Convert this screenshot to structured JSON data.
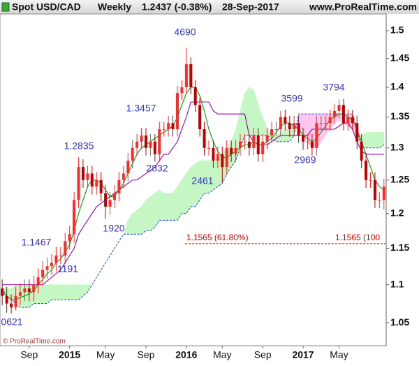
{
  "chart_data": {
    "type": "candlestick",
    "header": {
      "symbol": "Spot USD/CAD",
      "period": "Weekly",
      "last": "1.2437 (-0.38%)",
      "date": "28-Sep-2017",
      "site": "www.ProRealTime.com"
    },
    "copyright": "© ProRealTime.com",
    "categories": [
      null,
      null,
      null,
      null,
      null,
      null,
      "Sep",
      null,
      null,
      null,
      null,
      null,
      null,
      null,
      null,
      "2015",
      null,
      null,
      null,
      null,
      null,
      null,
      null,
      "May",
      null,
      null,
      null,
      null,
      null,
      null,
      null,
      null,
      "Sep",
      null,
      null,
      null,
      null,
      null,
      null,
      null,
      null,
      "2016",
      null,
      null,
      null,
      null,
      null,
      null,
      null,
      "May",
      null,
      null,
      null,
      null,
      null,
      null,
      null,
      null,
      "Sep",
      null,
      null,
      null,
      null,
      null,
      null,
      null,
      null,
      "2017",
      null,
      null,
      null,
      null,
      null,
      null,
      null,
      "May",
      null,
      null,
      null,
      null,
      null,
      null,
      null,
      null,
      null,
      null
    ],
    "open": [
      1.095,
      1.085,
      1.075,
      1.07,
      1.085,
      1.09,
      1.095,
      1.09,
      1.1,
      1.11,
      1.12,
      1.125,
      1.13,
      1.14,
      1.14,
      1.16,
      1.17,
      1.22,
      1.27,
      1.25,
      1.26,
      1.24,
      1.25,
      1.23,
      1.21,
      1.22,
      1.23,
      1.25,
      1.26,
      1.28,
      1.3,
      1.31,
      1.32,
      1.3,
      1.31,
      1.29,
      1.33,
      1.33,
      1.34,
      1.33,
      1.39,
      1.4,
      1.44,
      1.4,
      1.37,
      1.33,
      1.3,
      1.3,
      1.28,
      1.29,
      1.27,
      1.3,
      1.29,
      1.3,
      1.31,
      1.31,
      1.3,
      1.32,
      1.29,
      1.31,
      1.32,
      1.33,
      1.33,
      1.35,
      1.34,
      1.33,
      1.34,
      1.32,
      1.31,
      1.31,
      1.3,
      1.34,
      1.34,
      1.34,
      1.35,
      1.36,
      1.37,
      1.34,
      1.35,
      1.34,
      1.31,
      1.28,
      1.25,
      1.25,
      1.22,
      1.22
    ],
    "high": [
      1.107,
      1.097,
      1.087,
      1.097,
      1.102,
      1.107,
      1.107,
      1.112,
      1.122,
      1.132,
      1.137,
      1.142,
      1.152,
      1.152,
      1.172,
      1.182,
      1.232,
      1.285,
      1.282,
      1.272,
      1.272,
      1.262,
      1.262,
      1.242,
      1.232,
      1.242,
      1.262,
      1.272,
      1.292,
      1.312,
      1.322,
      1.332,
      1.332,
      1.322,
      1.322,
      1.342,
      1.342,
      1.352,
      1.352,
      1.402,
      1.412,
      1.469,
      1.452,
      1.412,
      1.382,
      1.342,
      1.312,
      1.312,
      1.302,
      1.302,
      1.312,
      1.312,
      1.312,
      1.322,
      1.322,
      1.322,
      1.332,
      1.332,
      1.322,
      1.332,
      1.342,
      1.342,
      1.36,
      1.362,
      1.352,
      1.352,
      1.352,
      1.332,
      1.322,
      1.322,
      1.352,
      1.352,
      1.352,
      1.362,
      1.372,
      1.379,
      1.38,
      1.362,
      1.362,
      1.352,
      1.322,
      1.292,
      1.262,
      1.262,
      1.232,
      1.252
    ],
    "low": [
      1.073,
      1.063,
      1.062,
      1.066,
      1.073,
      1.078,
      1.078,
      1.078,
      1.088,
      1.098,
      1.108,
      1.113,
      1.118,
      1.128,
      1.128,
      1.148,
      1.158,
      1.208,
      1.238,
      1.238,
      1.228,
      1.228,
      1.218,
      1.192,
      1.198,
      1.208,
      1.218,
      1.238,
      1.248,
      1.268,
      1.288,
      1.298,
      1.288,
      1.288,
      1.278,
      1.278,
      1.318,
      1.318,
      1.318,
      1.318,
      1.378,
      1.388,
      1.388,
      1.358,
      1.318,
      1.288,
      1.288,
      1.268,
      1.268,
      1.246,
      1.258,
      1.278,
      1.278,
      1.288,
      1.298,
      1.288,
      1.288,
      1.278,
      1.278,
      1.298,
      1.308,
      1.318,
      1.318,
      1.328,
      1.318,
      1.318,
      1.308,
      1.297,
      1.298,
      1.288,
      1.288,
      1.328,
      1.328,
      1.328,
      1.338,
      1.348,
      1.328,
      1.328,
      1.328,
      1.298,
      1.268,
      1.238,
      1.238,
      1.208,
      1.208,
      1.206
    ],
    "close": [
      1.085,
      1.075,
      1.07,
      1.085,
      1.09,
      1.095,
      1.09,
      1.1,
      1.11,
      1.12,
      1.125,
      1.13,
      1.14,
      1.14,
      1.16,
      1.17,
      1.22,
      1.27,
      1.25,
      1.26,
      1.24,
      1.25,
      1.23,
      1.21,
      1.22,
      1.23,
      1.25,
      1.26,
      1.28,
      1.3,
      1.31,
      1.32,
      1.3,
      1.31,
      1.29,
      1.33,
      1.33,
      1.34,
      1.33,
      1.39,
      1.4,
      1.44,
      1.4,
      1.37,
      1.33,
      1.3,
      1.3,
      1.28,
      1.29,
      1.27,
      1.3,
      1.29,
      1.3,
      1.31,
      1.31,
      1.3,
      1.32,
      1.29,
      1.31,
      1.32,
      1.33,
      1.33,
      1.35,
      1.34,
      1.33,
      1.34,
      1.32,
      1.31,
      1.31,
      1.3,
      1.34,
      1.34,
      1.34,
      1.35,
      1.36,
      1.37,
      1.34,
      1.35,
      1.34,
      1.31,
      1.28,
      1.25,
      1.25,
      1.22,
      1.22,
      1.24
    ],
    "up_color": "#ff2a2a",
    "down_color": "#c00000",
    "conversion_line": {
      "color": "#00a000",
      "values": [
        1.09,
        1.085,
        1.08,
        1.08,
        1.083,
        1.085,
        1.088,
        1.092,
        1.1,
        1.107,
        1.115,
        1.12,
        1.13,
        1.135,
        1.145,
        1.155,
        1.175,
        1.2,
        1.22,
        1.24,
        1.25,
        1.25,
        1.245,
        1.235,
        1.225,
        1.225,
        1.235,
        1.245,
        1.26,
        1.275,
        1.29,
        1.3,
        1.305,
        1.31,
        1.315,
        1.32,
        1.325,
        1.33,
        1.335,
        1.35,
        1.37,
        1.39,
        1.4,
        1.4,
        1.385,
        1.36,
        1.33,
        1.31,
        1.295,
        1.285,
        1.285,
        1.29,
        1.295,
        1.3,
        1.305,
        1.305,
        1.31,
        1.305,
        1.305,
        1.31,
        1.315,
        1.325,
        1.335,
        1.34,
        1.34,
        1.335,
        1.33,
        1.32,
        1.315,
        1.31,
        1.315,
        1.325,
        1.335,
        1.345,
        1.35,
        1.355,
        1.355,
        1.35,
        1.345,
        1.33,
        1.31,
        1.29,
        1.27,
        1.25,
        1.24,
        1.235
      ]
    },
    "base_line": {
      "color": "#9900aa",
      "values": [
        1.1,
        1.1,
        1.1,
        1.1,
        1.1,
        1.1,
        1.1,
        1.1,
        1.1,
        1.1,
        1.105,
        1.11,
        1.115,
        1.12,
        1.13,
        1.14,
        1.15,
        1.17,
        1.18,
        1.19,
        1.2,
        1.21,
        1.215,
        1.22,
        1.225,
        1.23,
        1.235,
        1.24,
        1.245,
        1.25,
        1.25,
        1.255,
        1.26,
        1.265,
        1.27,
        1.28,
        1.29,
        1.29,
        1.3,
        1.31,
        1.33,
        1.35,
        1.375,
        1.375,
        1.375,
        1.375,
        1.375,
        1.36,
        1.355,
        1.355,
        1.355,
        1.355,
        1.355,
        1.355,
        1.355,
        1.32,
        1.31,
        1.305,
        1.305,
        1.305,
        1.31,
        1.315,
        1.32,
        1.32,
        1.32,
        1.32,
        1.32,
        1.32,
        1.32,
        1.33,
        1.33,
        1.33,
        1.33,
        1.33,
        1.33,
        1.335,
        1.34,
        1.34,
        1.33,
        1.31,
        1.295,
        1.29,
        1.29,
        1.29,
        1.29,
        1.29
      ]
    },
    "cloud": {
      "span_a": [
        1.095,
        1.095,
        1.095,
        1.1,
        1.1,
        1.1,
        1.1,
        1.1,
        1.1,
        1.1,
        1.1,
        1.1,
        1.1,
        1.1,
        1.1,
        1.1,
        1.1,
        1.1,
        1.1,
        1.1,
        1.1,
        1.11,
        1.12,
        1.13,
        1.14,
        1.15,
        1.16,
        1.17,
        1.19,
        1.2,
        1.205,
        1.21,
        1.22,
        1.225,
        1.23,
        1.235,
        1.23,
        1.23,
        1.23,
        1.24,
        1.25,
        1.26,
        1.27,
        1.275,
        1.28,
        1.28,
        1.28,
        1.28,
        1.285,
        1.29,
        1.3,
        1.31,
        1.33,
        1.36,
        1.39,
        1.4,
        1.395,
        1.37,
        1.35,
        1.33,
        1.32,
        1.32,
        1.325,
        1.33,
        1.33,
        1.34,
        1.33,
        1.32,
        1.31,
        1.3,
        1.3,
        1.31,
        1.32,
        1.33,
        1.34,
        1.345,
        1.34,
        1.335,
        1.33,
        1.32,
        1.32,
        1.325,
        1.325,
        1.325,
        1.325,
        1.325
      ],
      "span_b": [
        1.095,
        1.085,
        1.08,
        1.075,
        1.07,
        1.07,
        1.07,
        1.075,
        1.075,
        1.075,
        1.075,
        1.08,
        1.08,
        1.08,
        1.08,
        1.08,
        1.08,
        1.08,
        1.085,
        1.09,
        1.1,
        1.11,
        1.12,
        1.13,
        1.14,
        1.15,
        1.16,
        1.17,
        1.17,
        1.17,
        1.17,
        1.17,
        1.175,
        1.175,
        1.18,
        1.19,
        1.19,
        1.19,
        1.19,
        1.19,
        1.2,
        1.2,
        1.21,
        1.21,
        1.22,
        1.23,
        1.23,
        1.235,
        1.24,
        1.245,
        1.26,
        1.27,
        1.28,
        1.3,
        1.32,
        1.32,
        1.32,
        1.32,
        1.32,
        1.32,
        1.315,
        1.31,
        1.31,
        1.31,
        1.31,
        1.32,
        1.355,
        1.355,
        1.355,
        1.355,
        1.355,
        1.355,
        1.355,
        1.355,
        1.355,
        1.355,
        1.355,
        1.355,
        1.355,
        1.33,
        1.3,
        1.3,
        1.3,
        1.3,
        1.3,
        1.305
      ],
      "bull_color": "#c4f7c4",
      "bear_color": "#ffc6ee",
      "edge_color": "#3355dd"
    },
    "annotations": [
      "4690",
      "1.3457",
      "1.2835",
      "2832",
      "1920",
      "1.1467",
      "1191",
      "0621",
      "2461",
      "3599",
      "2969",
      "3794"
    ],
    "annotation_color": "#3535c8",
    "fib_level": 1.1565,
    "fib_labels": [
      "1.1565 (61.80%)",
      "1.1565 (100"
    ],
    "fib_color": "#dd0000",
    "ylim": [
      1.021,
      1.531
    ],
    "yticks": [
      1.05,
      1.1,
      1.15,
      1.2,
      1.25,
      1.3,
      1.35,
      1.4,
      1.45,
      1.5
    ],
    "log_scale": true,
    "grid": false
  }
}
